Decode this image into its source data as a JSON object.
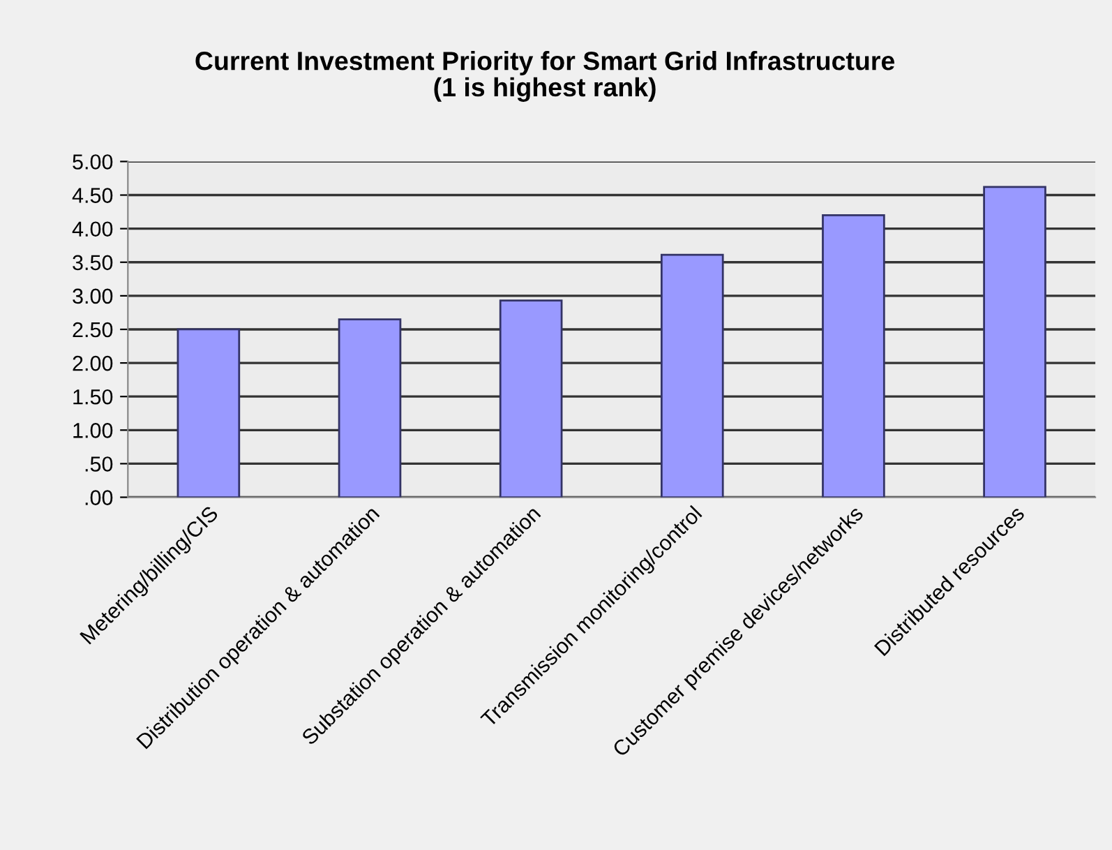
{
  "chart_data": {
    "type": "bar",
    "title": "Current Investment Priority for Smart Grid Infrastructure\n(1 is highest rank)",
    "categories": [
      "Metering/billing/CIS",
      "Distribution operation & automation",
      "Substation operation & automation",
      "Transmission monitoring/control",
      "Customer premise devices/networks",
      "Distributed resources"
    ],
    "values": [
      2.5,
      2.65,
      2.93,
      3.61,
      4.2,
      4.62
    ],
    "color": "#9999ff",
    "ylim": [
      0,
      5
    ],
    "yticks": [
      {
        "value": 0,
        "label": ".00"
      },
      {
        "value": 0.5,
        "label": ".50"
      },
      {
        "value": 1,
        "label": "1.00"
      },
      {
        "value": 1.5,
        "label": "1.50"
      },
      {
        "value": 2,
        "label": "2.00"
      },
      {
        "value": 2.5,
        "label": "2.50"
      },
      {
        "value": 3,
        "label": "3.00"
      },
      {
        "value": 3.5,
        "label": "3.50"
      },
      {
        "value": 4,
        "label": "4.00"
      },
      {
        "value": 4.5,
        "label": "4.50"
      },
      {
        "value": 5,
        "label": "5.00"
      }
    ],
    "grid": "y",
    "legend": false
  }
}
